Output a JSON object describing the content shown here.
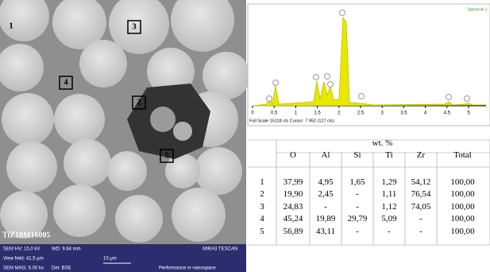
{
  "sem": {
    "labels": [
      "1",
      "2",
      "3",
      "4",
      "5"
    ],
    "sample_id": "TiZ10M16005",
    "info": {
      "hv": "SEM HV: 15.0 kV",
      "wd": "WD: 9.84 mm",
      "brand": "MIRA3 TESCAN",
      "view_field": "View field: 41.5 μm",
      "scale": "10 μm",
      "mag": "SEM MAG: 5.00 kx",
      "det": "Det: BSE",
      "slogan": "Performance in nanospace"
    }
  },
  "spectrum": {
    "title": "Spectrum 1",
    "xticks": [
      "0",
      "0.5",
      "1",
      "1.5",
      "2",
      "2.5",
      "3",
      "3.5",
      "4",
      "4.5",
      "5"
    ],
    "footer": "Full Scale 15118 cts Cursor: 7.952  (127 cts)"
  },
  "table": {
    "group_header": "wt. %",
    "columns": [
      "O",
      "Al",
      "Si",
      "Ti",
      "Zr",
      "Total"
    ],
    "rows": [
      [
        "1",
        "37,99",
        "4,95",
        "1,65",
        "1,29",
        "54,12",
        "100,00"
      ],
      [
        "2",
        "19,90",
        "2,45",
        "-",
        "1,11",
        "76,54",
        "100,00"
      ],
      [
        "3",
        "24,83",
        "-",
        "-",
        "1,12",
        "74,05",
        "100,00"
      ],
      [
        "4",
        "45,24",
        "19,89",
        "29,79",
        "5,09",
        "-",
        "100,00"
      ],
      [
        "5",
        "56,89",
        "43,11",
        "-",
        "-",
        "-",
        "100,00"
      ]
    ]
  }
}
